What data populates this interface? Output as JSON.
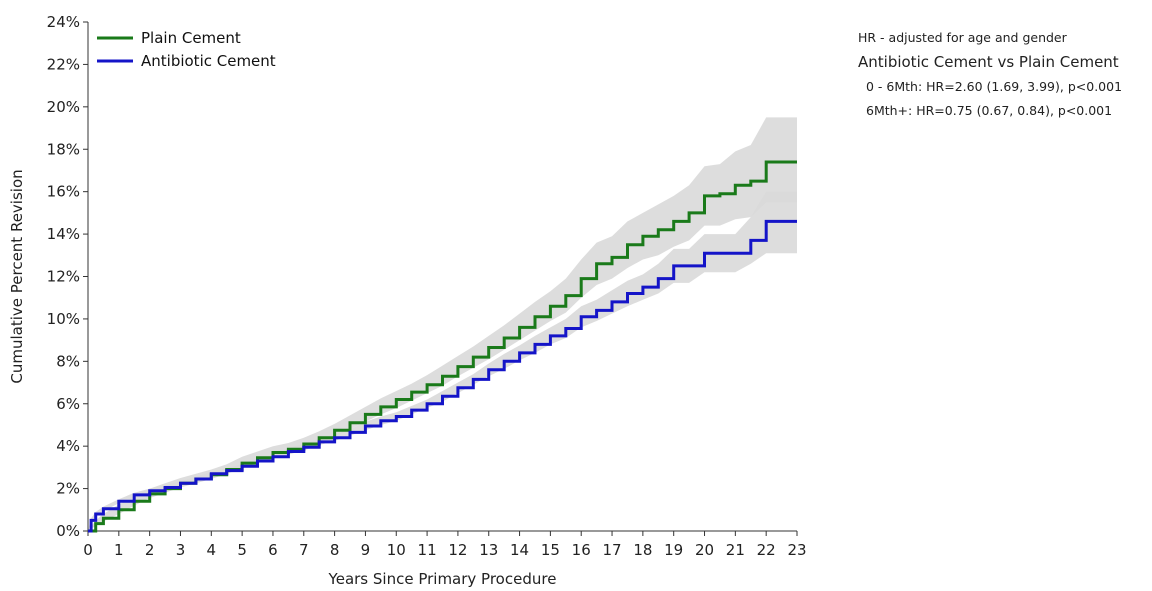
{
  "chart_data": {
    "type": "line",
    "xlabel": "Years Since Primary Procedure",
    "ylabel": "Cumulative Percent Revision",
    "xlim": [
      0,
      23
    ],
    "ylim": [
      0,
      24
    ],
    "x_ticks": [
      "0",
      "1",
      "2",
      "3",
      "4",
      "5",
      "6",
      "7",
      "8",
      "9",
      "10",
      "11",
      "12",
      "13",
      "14",
      "15",
      "16",
      "17",
      "18",
      "19",
      "20",
      "21",
      "22",
      "23"
    ],
    "y_ticks": [
      "0%",
      "2%",
      "4%",
      "6%",
      "8%",
      "10%",
      "12%",
      "14%",
      "16%",
      "18%",
      "20%",
      "22%",
      "24%"
    ],
    "grid": false,
    "legend_position": "top-left",
    "series": [
      {
        "name": "Plain Cement",
        "color": "#1a7a1a",
        "x": [
          0,
          0.25,
          0.5,
          1,
          1.5,
          2,
          2.5,
          3,
          3.5,
          4,
          4.5,
          5,
          5.5,
          6,
          6.5,
          7,
          7.5,
          8,
          8.5,
          9,
          9.5,
          10,
          10.5,
          11,
          11.5,
          12,
          12.5,
          13,
          13.5,
          14,
          14.5,
          15,
          15.5,
          16,
          16.5,
          17,
          17.5,
          18,
          18.5,
          19,
          19.5,
          20,
          20.5,
          21,
          21.5,
          22,
          22.5,
          23
        ],
        "y": [
          0,
          0.35,
          0.6,
          1.0,
          1.4,
          1.75,
          2.0,
          2.25,
          2.45,
          2.65,
          2.9,
          3.2,
          3.45,
          3.7,
          3.85,
          4.1,
          4.4,
          4.75,
          5.1,
          5.5,
          5.85,
          6.2,
          6.55,
          6.9,
          7.3,
          7.75,
          8.2,
          8.65,
          9.1,
          9.6,
          10.1,
          10.6,
          11.1,
          11.9,
          12.6,
          12.9,
          13.5,
          13.9,
          14.2,
          14.6,
          15.0,
          15.8,
          15.9,
          16.3,
          16.5,
          17.4,
          17.4,
          17.4
        ],
        "ci_lower": [
          0,
          0.25,
          0.45,
          0.8,
          1.2,
          1.55,
          1.8,
          2.05,
          2.25,
          2.45,
          2.7,
          2.95,
          3.2,
          3.45,
          3.6,
          3.85,
          4.15,
          4.45,
          4.8,
          5.15,
          5.5,
          5.8,
          6.15,
          6.5,
          6.85,
          7.3,
          7.7,
          8.1,
          8.55,
          9.0,
          9.45,
          9.9,
          10.3,
          11.0,
          11.6,
          11.9,
          12.4,
          12.8,
          13.0,
          13.4,
          13.7,
          14.4,
          14.4,
          14.7,
          14.8,
          15.5,
          15.5,
          15.5
        ],
        "ci_upper": [
          0,
          0.5,
          0.8,
          1.25,
          1.65,
          2.0,
          2.25,
          2.5,
          2.7,
          2.9,
          3.15,
          3.5,
          3.75,
          4.0,
          4.15,
          4.4,
          4.7,
          5.05,
          5.45,
          5.85,
          6.25,
          6.6,
          6.95,
          7.35,
          7.8,
          8.25,
          8.7,
          9.2,
          9.7,
          10.25,
          10.8,
          11.3,
          11.9,
          12.8,
          13.6,
          13.9,
          14.6,
          15.0,
          15.4,
          15.8,
          16.3,
          17.2,
          17.3,
          17.9,
          18.2,
          19.5,
          19.5,
          19.5
        ]
      },
      {
        "name": "Antibiotic Cement",
        "color": "#1414c8",
        "x": [
          0,
          0.1,
          0.25,
          0.5,
          1,
          1.5,
          2,
          2.5,
          3,
          3.5,
          4,
          4.5,
          5,
          5.5,
          6,
          6.5,
          7,
          7.5,
          8,
          8.5,
          9,
          9.5,
          10,
          10.5,
          11,
          11.5,
          12,
          12.5,
          13,
          13.5,
          14,
          14.5,
          15,
          15.5,
          16,
          16.5,
          17,
          17.5,
          18,
          18.5,
          19,
          19.5,
          20,
          20.5,
          21,
          21.5,
          22,
          22.5,
          23
        ],
        "y": [
          0,
          0.5,
          0.8,
          1.05,
          1.4,
          1.7,
          1.9,
          2.05,
          2.25,
          2.45,
          2.7,
          2.85,
          3.05,
          3.3,
          3.5,
          3.75,
          3.95,
          4.2,
          4.4,
          4.65,
          4.95,
          5.2,
          5.4,
          5.7,
          6.0,
          6.35,
          6.75,
          7.15,
          7.6,
          8.0,
          8.4,
          8.8,
          9.2,
          9.55,
          10.1,
          10.4,
          10.8,
          11.2,
          11.5,
          11.9,
          12.5,
          12.5,
          13.1,
          13.1,
          13.1,
          13.7,
          14.6,
          14.6,
          14.6
        ],
        "ci_lower": [
          0,
          0.4,
          0.7,
          0.95,
          1.3,
          1.6,
          1.8,
          1.95,
          2.15,
          2.35,
          2.6,
          2.75,
          2.95,
          3.2,
          3.4,
          3.6,
          3.8,
          4.05,
          4.25,
          4.5,
          4.75,
          5.0,
          5.2,
          5.5,
          5.8,
          6.1,
          6.5,
          6.9,
          7.3,
          7.65,
          8.05,
          8.4,
          8.8,
          9.1,
          9.6,
          9.9,
          10.25,
          10.6,
          10.9,
          11.2,
          11.7,
          11.7,
          12.2,
          12.2,
          12.2,
          12.6,
          13.1,
          13.1,
          13.1
        ],
        "ci_upper": [
          0,
          0.6,
          0.9,
          1.15,
          1.5,
          1.8,
          2.0,
          2.15,
          2.35,
          2.55,
          2.8,
          2.95,
          3.15,
          3.4,
          3.6,
          3.9,
          4.1,
          4.35,
          4.55,
          4.8,
          5.15,
          5.4,
          5.6,
          5.9,
          6.2,
          6.6,
          7.0,
          7.4,
          7.9,
          8.35,
          8.75,
          9.2,
          9.6,
          10.0,
          10.6,
          10.9,
          11.35,
          11.8,
          12.1,
          12.6,
          13.3,
          13.3,
          14.0,
          14.0,
          14.0,
          14.8,
          16.0,
          16.0,
          16.0
        ]
      }
    ],
    "ci_color": "#d9d9d9"
  },
  "hr_panel": {
    "note": "HR - adjusted for age and gender",
    "title": "Antibiotic Cement vs Plain Cement",
    "lines": [
      "0 - 6Mth: HR=2.60 (1.69, 3.99), p<0.001",
      "6Mth+: HR=0.75 (0.67, 0.84), p<0.001"
    ]
  }
}
